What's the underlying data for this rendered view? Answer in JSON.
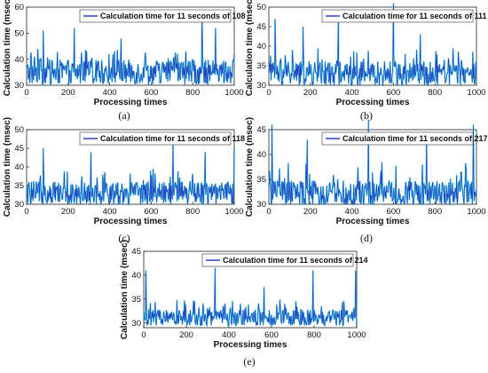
{
  "figure": {
    "panels": [
      {
        "xlabel": "Processing times",
        "ylabel": "Calculation time (msec)",
        "legend": "Calculation time for 11 seconds of 108",
        "caption": "(a)"
      },
      {
        "xlabel": "Processing times",
        "ylabel": "Calculation time (msec)",
        "legend": "Calculation time for 11 seconds of 111",
        "caption": "(b)"
      },
      {
        "xlabel": "Processing times",
        "ylabel": "Calculation time (msec)",
        "legend": "Calculation time for 11 seconds of 118",
        "caption": "(c)"
      },
      {
        "xlabel": "Processing times",
        "ylabel": "Calculation time (msec)",
        "legend": "Calculation time for 11 seconds of 217",
        "caption": "(d)"
      },
      {
        "xlabel": "Processing times",
        "ylabel": "Calculation time (msec)",
        "legend": "Calculation time for 11 seconds of 214",
        "caption": "(e)"
      }
    ]
  },
  "chart_data": [
    {
      "type": "line",
      "series": [
        {
          "name": "Calculation time for 11 seconds of 108",
          "color": "#2b3fc4",
          "x_range": [
            1,
            1000
          ],
          "baseline": 35,
          "typical_range": [
            30,
            42
          ],
          "peaks": [
            {
              "x": 80,
              "y": 51
            },
            {
              "x": 230,
              "y": 52
            },
            {
              "x": 455,
              "y": 48
            },
            {
              "x": 845,
              "y": 58
            },
            {
              "x": 910,
              "y": 52
            }
          ]
        }
      ],
      "xlim": [
        0,
        1000
      ],
      "ylim": [
        30,
        60
      ],
      "xticks": [
        0,
        200,
        400,
        600,
        800,
        1000
      ],
      "yticks": [
        30,
        40,
        50,
        60
      ],
      "grid": false,
      "legend_position": "top-right",
      "secondary_color": "#00d4d4"
    },
    {
      "type": "line",
      "series": [
        {
          "name": "Calculation time for 11 seconds of 111",
          "color": "#2b3fc4",
          "x_range": [
            1,
            1000
          ],
          "baseline": 33,
          "typical_range": [
            30,
            38
          ],
          "peaks": [
            {
              "x": 30,
              "y": 47
            },
            {
              "x": 165,
              "y": 45
            },
            {
              "x": 335,
              "y": 48
            },
            {
              "x": 600,
              "y": 51
            },
            {
              "x": 730,
              "y": 43
            }
          ]
        }
      ],
      "xlim": [
        0,
        1000
      ],
      "ylim": [
        30,
        50
      ],
      "xticks": [
        0,
        200,
        400,
        600,
        800,
        1000
      ],
      "yticks": [
        30,
        35,
        40,
        45,
        50
      ],
      "grid": false,
      "legend_position": "top-right",
      "secondary_color": "#00d4d4"
    },
    {
      "type": "line",
      "series": [
        {
          "name": "Calculation time for 11 seconds of 118",
          "color": "#2b3fc4",
          "x_range": [
            1,
            1000
          ],
          "baseline": 33,
          "typical_range": [
            30,
            38
          ],
          "peaks": [
            {
              "x": 80,
              "y": 45
            },
            {
              "x": 310,
              "y": 44
            },
            {
              "x": 705,
              "y": 47
            },
            {
              "x": 860,
              "y": 44
            },
            {
              "x": 1000,
              "y": 45
            }
          ]
        }
      ],
      "xlim": [
        0,
        1000
      ],
      "ylim": [
        30,
        50
      ],
      "xticks": [
        0,
        200,
        400,
        600,
        800,
        1000
      ],
      "yticks": [
        30,
        35,
        40,
        45,
        50
      ],
      "grid": false,
      "legend_position": "top-right",
      "secondary_color": "#00d4d4"
    },
    {
      "type": "line",
      "series": [
        {
          "name": "Calculation time for 11 seconds of 217",
          "color": "#2b3fc4",
          "x_range": [
            1,
            1000
          ],
          "baseline": 32,
          "typical_range": [
            30,
            37
          ],
          "peaks": [
            {
              "x": 15,
              "y": 46
            },
            {
              "x": 185,
              "y": 43
            },
            {
              "x": 480,
              "y": 47
            },
            {
              "x": 760,
              "y": 44
            },
            {
              "x": 985,
              "y": 46
            }
          ]
        }
      ],
      "xlim": [
        0,
        1000
      ],
      "ylim": [
        30,
        45
      ],
      "xticks": [
        0,
        200,
        400,
        600,
        800,
        1000
      ],
      "yticks": [
        30,
        35,
        40,
        45
      ],
      "grid": false,
      "legend_position": "top-right",
      "secondary_color": "#00d4d4"
    },
    {
      "type": "line",
      "series": [
        {
          "name": "Calculation time for 11 seconds of 214",
          "color": "#2b3fc4",
          "x_range": [
            1,
            1000
          ],
          "baseline": 31,
          "typical_range": [
            29.5,
            34
          ],
          "peaks": [
            {
              "x": 10,
              "y": 41
            },
            {
              "x": 335,
              "y": 41.5
            },
            {
              "x": 565,
              "y": 37.5
            },
            {
              "x": 795,
              "y": 41
            },
            {
              "x": 995,
              "y": 41
            }
          ]
        }
      ],
      "xlim": [
        0,
        1000
      ],
      "ylim": [
        29,
        45
      ],
      "xticks": [
        0,
        200,
        400,
        600,
        800,
        1000
      ],
      "yticks": [
        30,
        35,
        40,
        45
      ],
      "grid": false,
      "legend_position": "top-right",
      "secondary_color": "#00d4d4"
    }
  ]
}
